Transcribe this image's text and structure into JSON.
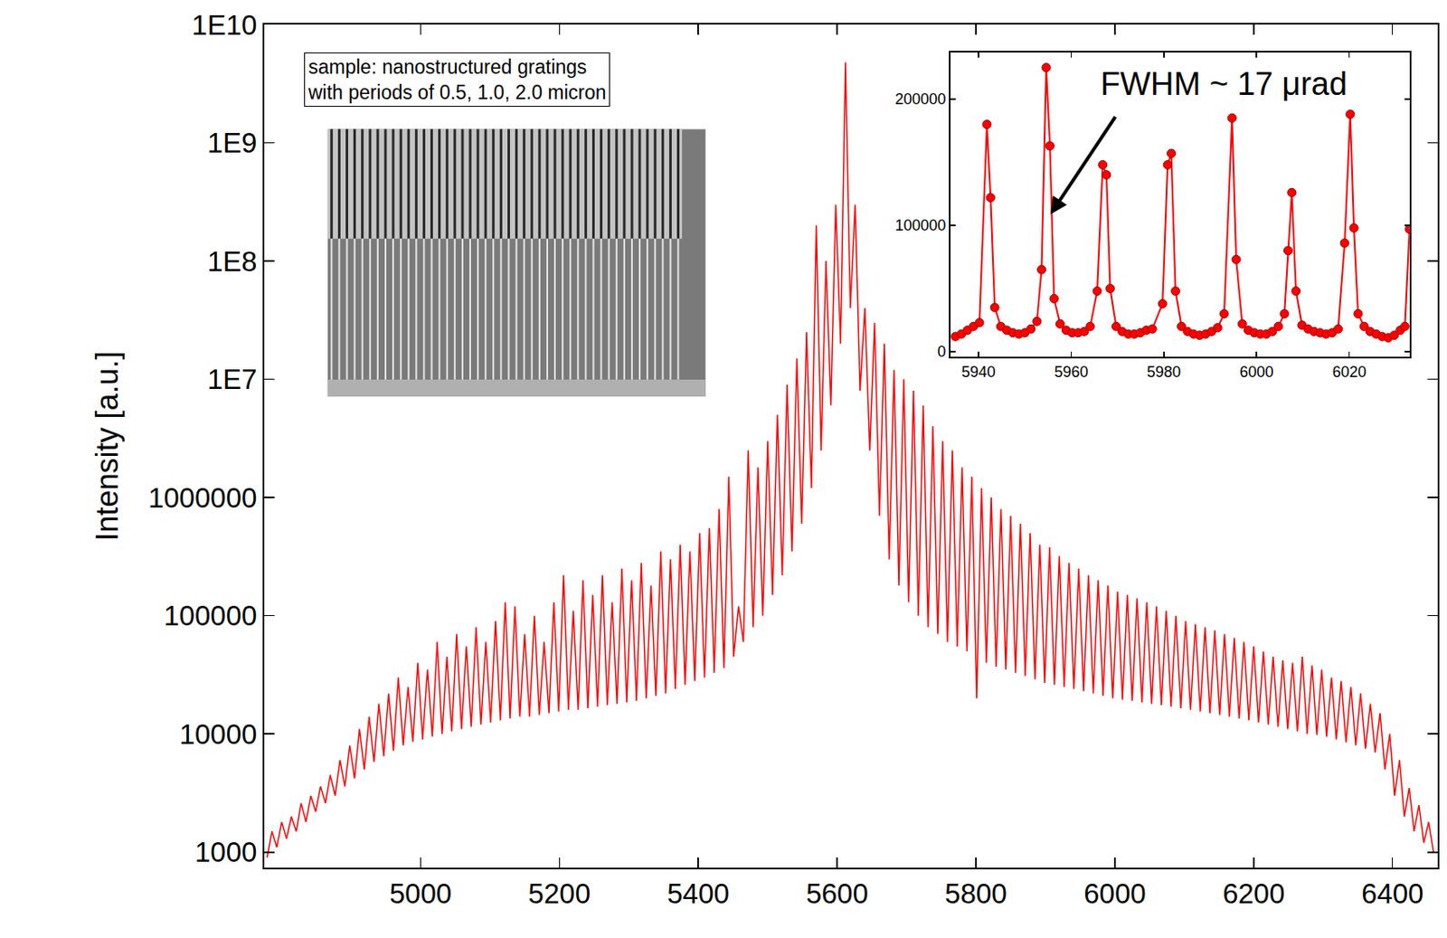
{
  "chart_data": [
    {
      "type": "line",
      "ylabel": "Intensity [a.u.]",
      "log": "y",
      "grid": false,
      "annotations": [
        {
          "text": "sample: nanostructured gratings\nwith periods of 0.5, 1.0, 2.0 micron"
        }
      ],
      "xlim": [
        4775,
        6465
      ],
      "xticks": [
        5000,
        5200,
        5400,
        5600,
        5800,
        6000,
        6200,
        6400
      ],
      "ylim": [
        740,
        10000000000
      ],
      "yticks": [
        1000,
        10000,
        100000,
        1000000,
        {
          "value": 10000000,
          "label": "1E7"
        },
        {
          "value": 100000000,
          "label": "1E8"
        },
        {
          "value": 1000000000,
          "label": "1E9"
        },
        {
          "value": 10000000000,
          "label": "1E10"
        }
      ],
      "x": [
        4779,
        4786,
        4793,
        4800,
        4807,
        4814,
        4821,
        4828,
        4835,
        4842,
        4849,
        4856,
        4863,
        4870,
        4877,
        4884,
        4891,
        4898,
        4905,
        4912,
        4919,
        4926,
        4933,
        4940,
        4947,
        4954,
        4961,
        4968,
        4975,
        4982,
        4989,
        4996,
        5003,
        5010,
        5017,
        5024,
        5031,
        5038,
        5045,
        5052,
        5059,
        5066,
        5073,
        5080,
        5087,
        5094,
        5101,
        5108,
        5115,
        5122,
        5129,
        5136,
        5143,
        5150,
        5157,
        5164,
        5171,
        5178,
        5185,
        5192,
        5199,
        5206,
        5213,
        5220,
        5227,
        5234,
        5241,
        5248,
        5255,
        5262,
        5269,
        5276,
        5283,
        5290,
        5297,
        5304,
        5311,
        5318,
        5325,
        5332,
        5339,
        5346,
        5353,
        5360,
        5367,
        5374,
        5381,
        5388,
        5395,
        5402,
        5409,
        5416,
        5423,
        5430,
        5437,
        5444,
        5451,
        5458,
        5465,
        5472,
        5479,
        5486,
        5493,
        5500,
        5507,
        5514,
        5521,
        5528,
        5535,
        5542,
        5549,
        5556,
        5563,
        5570,
        5577,
        5584,
        5591,
        5598,
        5605,
        5612,
        5619,
        5626,
        5633,
        5640,
        5647,
        5654,
        5661,
        5668,
        5675,
        5682,
        5689,
        5696,
        5703,
        5710,
        5717,
        5724,
        5731,
        5738,
        5745,
        5752,
        5759,
        5766,
        5773,
        5780,
        5787,
        5794,
        5801,
        5808,
        5815,
        5822,
        5829,
        5836,
        5843,
        5850,
        5857,
        5864,
        5871,
        5878,
        5885,
        5892,
        5899,
        5906,
        5913,
        5920,
        5927,
        5934,
        5941,
        5948,
        5955,
        5962,
        5969,
        5976,
        5983,
        5990,
        5997,
        6004,
        6011,
        6018,
        6025,
        6032,
        6039,
        6046,
        6053,
        6060,
        6067,
        6074,
        6081,
        6088,
        6095,
        6102,
        6109,
        6116,
        6123,
        6130,
        6137,
        6144,
        6151,
        6158,
        6165,
        6172,
        6179,
        6186,
        6193,
        6200,
        6207,
        6214,
        6221,
        6228,
        6235,
        6242,
        6249,
        6256,
        6263,
        6270,
        6277,
        6284,
        6291,
        6298,
        6305,
        6312,
        6319,
        6326,
        6333,
        6340,
        6347,
        6354,
        6361,
        6368,
        6375,
        6382,
        6389,
        6396,
        6403,
        6410,
        6417,
        6424,
        6431,
        6438,
        6445,
        6452,
        6459
      ],
      "series": [
        {
          "color": "#ff0000",
          "values": [
            900,
            1500,
            1100,
            1800,
            1300,
            2000,
            1500,
            2600,
            1800,
            3000,
            2200,
            3600,
            2600,
            4500,
            3000,
            6000,
            3600,
            8000,
            4200,
            11000,
            5000,
            14000,
            5800,
            18000,
            6500,
            22000,
            7200,
            30000,
            8000,
            25000,
            8600,
            40000,
            9000,
            35000,
            9500,
            60000,
            10000,
            45000,
            10500,
            70000,
            11000,
            55000,
            11500,
            80000,
            12000,
            60000,
            12500,
            90000,
            13000,
            130000,
            13500,
            120000,
            14000,
            70000,
            14000,
            100000,
            14500,
            60000,
            15000,
            130000,
            15500,
            220000,
            16000,
            110000,
            16000,
            200000,
            16500,
            150000,
            17000,
            220000,
            17500,
            130000,
            18000,
            250000,
            18500,
            200000,
            19000,
            280000,
            20000,
            180000,
            21000,
            350000,
            22000,
            300000,
            24000,
            400000,
            26000,
            350000,
            28000,
            500000,
            30000,
            550000,
            33000,
            800000,
            36000,
            1500000,
            45000,
            120000,
            60000,
            2500000,
            80000,
            1800000,
            100000,
            3000000,
            150000,
            5000000,
            220000,
            9000000,
            350000,
            15000000,
            600000,
            25000000,
            1200000,
            200000000,
            2500000,
            100000000,
            6000000,
            300000000,
            20000000,
            4800000000,
            40000000,
            300000000,
            8000000,
            40000000,
            2500000,
            30000000,
            700000,
            20000000,
            300000,
            12000000,
            180000,
            10000000,
            130000,
            8000000,
            100000,
            6000000,
            80000,
            4000000,
            70000,
            3000000,
            60000,
            2500000,
            55000,
            1800000,
            50000,
            1500000,
            20000,
            1200000,
            40000,
            1000000,
            37000,
            800000,
            35000,
            700000,
            33000,
            600000,
            31000,
            500000,
            29000,
            400000,
            27000,
            380000,
            26000,
            320000,
            25000,
            280000,
            24000,
            250000,
            23000,
            220000,
            22000,
            200000,
            21000,
            180000,
            20000,
            160000,
            19500,
            150000,
            19000,
            140000,
            18500,
            130000,
            18000,
            120000,
            17500,
            110000,
            17000,
            100000,
            16500,
            90000,
            16000,
            85000,
            15500,
            80000,
            15000,
            75000,
            14500,
            70000,
            14000,
            65000,
            13500,
            60000,
            13000,
            55000,
            12500,
            50000,
            12000,
            45000,
            11500,
            42000,
            11000,
            40000,
            10500,
            45000,
            10000,
            38000,
            9800,
            35000,
            9500,
            30000,
            9000,
            28000,
            8500,
            25000,
            8000,
            22000,
            7500,
            18000,
            7000,
            15000,
            5000,
            10000,
            3000,
            6000,
            2000,
            3500,
            1500,
            2500,
            1200,
            1800,
            1000
          ]
        }
      ]
    },
    {
      "type": "line",
      "marker": "circle",
      "line_style": "solid",
      "grid": false,
      "annotations": [
        {
          "text": "FWHM ~ 17 μrad"
        }
      ],
      "xlim": [
        5934,
        6033
      ],
      "xticks": [
        5940,
        5960,
        5980,
        6000,
        6020
      ],
      "ylim": [
        -4000,
        237000
      ],
      "yticks": [
        0,
        100000,
        200000
      ],
      "x": [
        5935,
        5936.3,
        5937.6,
        5938.9,
        5940.2,
        5941.8,
        5942.6,
        5943.5,
        5944.8,
        5946.1,
        5947.4,
        5948.7,
        5950,
        5951.3,
        5952.6,
        5953.6,
        5954.6,
        5955.4,
        5956.3,
        5957.6,
        5958.9,
        5960.2,
        5961.5,
        5962.8,
        5964.1,
        5965.6,
        5966.8,
        5967.6,
        5968.4,
        5969.7,
        5971,
        5972.3,
        5973.6,
        5974.9,
        5976.2,
        5977.5,
        5979.7,
        5980.8,
        5981.6,
        5982.5,
        5983.8,
        5985.1,
        5986.4,
        5987.7,
        5989,
        5990.3,
        5991.6,
        5993,
        5994.7,
        5995.6,
        5996.9,
        5998.2,
        5999.5,
        6000.8,
        6002.1,
        6003.4,
        6004.7,
        6006,
        6006.8,
        6007.6,
        6008.5,
        6009.8,
        6011.1,
        6012.4,
        6013.7,
        6015,
        6016.3,
        6017.6,
        6019,
        6020.2,
        6021,
        6021.9,
        6023.2,
        6024.5,
        6025.8,
        6027.1,
        6028.4,
        6029.7,
        6031,
        6032,
        6033
      ],
      "series": [
        {
          "color": "#ff0000",
          "values": [
            12000,
            14000,
            17000,
            20000,
            23000,
            180000,
            122000,
            35000,
            20000,
            17000,
            15000,
            14000,
            15000,
            18000,
            24000,
            65000,
            225000,
            163000,
            42000,
            22000,
            17000,
            15000,
            15000,
            16000,
            20000,
            48000,
            148000,
            140000,
            50000,
            20000,
            16000,
            14000,
            14000,
            15000,
            17000,
            18000,
            38000,
            148000,
            157000,
            48000,
            20000,
            16000,
            14000,
            13000,
            14000,
            16000,
            19000,
            30000,
            185000,
            73000,
            22000,
            17000,
            15000,
            14000,
            14000,
            16000,
            20000,
            30000,
            80000,
            126000,
            48000,
            21000,
            18000,
            16000,
            15000,
            14000,
            15000,
            18000,
            86000,
            188000,
            98000,
            30000,
            20000,
            16000,
            14000,
            12000,
            11000,
            13000,
            17000,
            20000,
            97000
          ]
        }
      ]
    }
  ]
}
